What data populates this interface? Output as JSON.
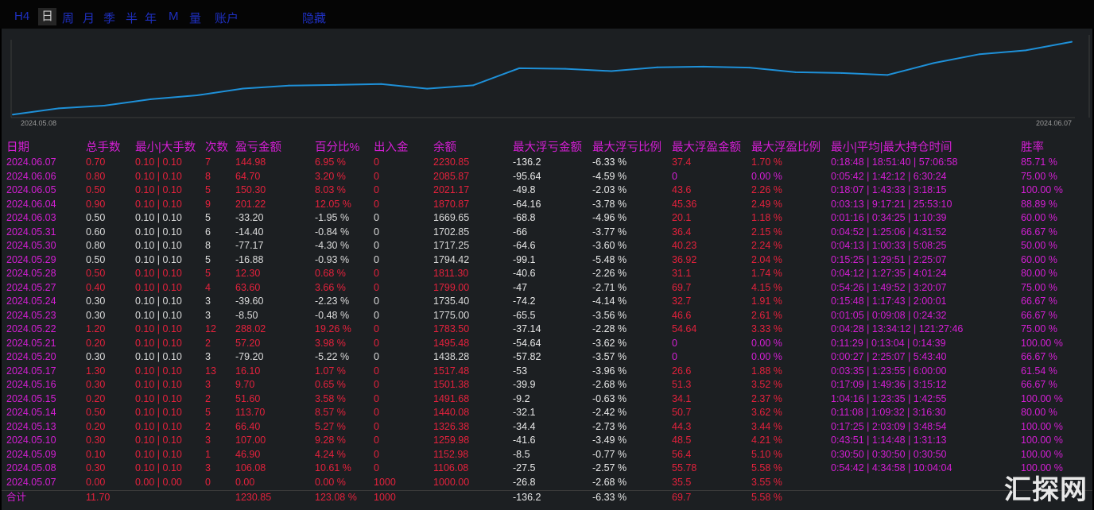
{
  "tabs": [
    {
      "label": "H4"
    },
    {
      "label": "日"
    },
    {
      "label": "周"
    },
    {
      "label": "月"
    },
    {
      "label": "季"
    },
    {
      "label": "半"
    },
    {
      "label": "年"
    },
    {
      "label": "M"
    },
    {
      "label": "量"
    },
    {
      "label": "账户"
    },
    {
      "label": "隐藏"
    }
  ],
  "active_tab": 1,
  "chart_data": {
    "type": "line",
    "x_labels": [
      "2024.05.08",
      "2024.06.07"
    ],
    "x": [
      "2024.05.07",
      "2024.05.08",
      "2024.05.09",
      "2024.05.10",
      "2024.05.13",
      "2024.05.14",
      "2024.05.15",
      "2024.05.16",
      "2024.05.17",
      "2024.05.20",
      "2024.05.21",
      "2024.05.22",
      "2024.05.23",
      "2024.05.24",
      "2024.05.27",
      "2024.05.28",
      "2024.05.29",
      "2024.05.30",
      "2024.05.31",
      "2024.06.03",
      "2024.06.04",
      "2024.06.05",
      "2024.06.06",
      "2024.06.07"
    ],
    "values": [
      1000.0,
      1106.08,
      1152.98,
      1259.98,
      1326.38,
      1440.08,
      1491.68,
      1501.38,
      1517.48,
      1438.28,
      1495.48,
      1783.5,
      1775.0,
      1735.4,
      1799.0,
      1811.3,
      1794.42,
      1717.25,
      1702.85,
      1669.65,
      1870.87,
      2021.17,
      2085.87,
      2230.85
    ],
    "ylim": [
      950,
      2320
    ],
    "color": "#1e90d8",
    "grid": false
  },
  "table": {
    "headers": [
      "日期",
      "总手数",
      "最小|大手数",
      "次数",
      "盈亏金额",
      "百分比%",
      "出入金",
      "余额",
      "最大浮亏金额",
      "最大浮亏比例",
      "最大浮盈金额",
      "最大浮盈比例",
      "最小|平均|最大持仓时间",
      "胜率"
    ],
    "rows": [
      {
        "date": "2024.06.07",
        "lots": "0.70",
        "minmax": "0.10 | 0.10",
        "count": "7",
        "pnl": "144.98",
        "pct": "6.95 %",
        "io": "0",
        "bal": "2230.85",
        "mfl": "-136.2",
        "mflp": "-6.33 %",
        "mfp": "37.4",
        "mfpp": "1.70 %",
        "hold": "0:18:48 | 18:51:40 | 57:06:58",
        "win": "85.71 %",
        "sign": "pos"
      },
      {
        "date": "2024.06.06",
        "lots": "0.80",
        "minmax": "0.10 | 0.10",
        "count": "8",
        "pnl": "64.70",
        "pct": "3.20 %",
        "io": "0",
        "bal": "2085.87",
        "mfl": "-95.64",
        "mflp": "-4.59 %",
        "mfp": "0",
        "mfpp": "0.00 %",
        "hold": "0:05:42 | 1:42:12 | 6:30:24",
        "win": "75.00 %",
        "sign": "pos"
      },
      {
        "date": "2024.06.05",
        "lots": "0.50",
        "minmax": "0.10 | 0.10",
        "count": "5",
        "pnl": "150.30",
        "pct": "8.03 %",
        "io": "0",
        "bal": "2021.17",
        "mfl": "-49.8",
        "mflp": "-2.03 %",
        "mfp": "43.6",
        "mfpp": "2.26 %",
        "hold": "0:18:07 | 1:43:33 | 3:18:15",
        "win": "100.00 %",
        "sign": "pos"
      },
      {
        "date": "2024.06.04",
        "lots": "0.90",
        "minmax": "0.10 | 0.10",
        "count": "9",
        "pnl": "201.22",
        "pct": "12.05 %",
        "io": "0",
        "bal": "1870.87",
        "mfl": "-64.16",
        "mflp": "-3.78 %",
        "mfp": "45.36",
        "mfpp": "2.49 %",
        "hold": "0:03:13 | 9:17:21 | 25:53:10",
        "win": "88.89 %",
        "sign": "pos"
      },
      {
        "date": "2024.06.03",
        "lots": "0.50",
        "minmax": "0.10 | 0.10",
        "count": "5",
        "pnl": "-33.20",
        "pct": "-1.95 %",
        "io": "0",
        "bal": "1669.65",
        "mfl": "-68.8",
        "mflp": "-4.96 %",
        "mfp": "20.1",
        "mfpp": "1.18 %",
        "hold": "0:01:16 | 0:34:25 | 1:10:39",
        "win": "60.00 %",
        "sign": "neg"
      },
      {
        "date": "2024.05.31",
        "lots": "0.60",
        "minmax": "0.10 | 0.10",
        "count": "6",
        "pnl": "-14.40",
        "pct": "-0.84 %",
        "io": "0",
        "bal": "1702.85",
        "mfl": "-66",
        "mflp": "-3.77 %",
        "mfp": "36.4",
        "mfpp": "2.15 %",
        "hold": "0:04:52 | 1:25:06 | 4:31:52",
        "win": "66.67 %",
        "sign": "neg"
      },
      {
        "date": "2024.05.30",
        "lots": "0.80",
        "minmax": "0.10 | 0.10",
        "count": "8",
        "pnl": "-77.17",
        "pct": "-4.30 %",
        "io": "0",
        "bal": "1717.25",
        "mfl": "-64.6",
        "mflp": "-3.60 %",
        "mfp": "40.23",
        "mfpp": "2.24 %",
        "hold": "0:04:13 | 1:00:33 | 5:08:25",
        "win": "50.00 %",
        "sign": "neg"
      },
      {
        "date": "2024.05.29",
        "lots": "0.50",
        "minmax": "0.10 | 0.10",
        "count": "5",
        "pnl": "-16.88",
        "pct": "-0.93 %",
        "io": "0",
        "bal": "1794.42",
        "mfl": "-99.1",
        "mflp": "-5.48 %",
        "mfp": "36.92",
        "mfpp": "2.04 %",
        "hold": "0:15:25 | 1:29:51 | 2:25:07",
        "win": "60.00 %",
        "sign": "neg"
      },
      {
        "date": "2024.05.28",
        "lots": "0.50",
        "minmax": "0.10 | 0.10",
        "count": "5",
        "pnl": "12.30",
        "pct": "0.68 %",
        "io": "0",
        "bal": "1811.30",
        "mfl": "-40.6",
        "mflp": "-2.26 %",
        "mfp": "31.1",
        "mfpp": "1.74 %",
        "hold": "0:04:12 | 1:27:35 | 4:01:24",
        "win": "80.00 %",
        "sign": "pos"
      },
      {
        "date": "2024.05.27",
        "lots": "0.40",
        "minmax": "0.10 | 0.10",
        "count": "4",
        "pnl": "63.60",
        "pct": "3.66 %",
        "io": "0",
        "bal": "1799.00",
        "mfl": "-47",
        "mflp": "-2.71 %",
        "mfp": "69.7",
        "mfpp": "4.15 %",
        "hold": "0:54:26 | 1:49:52 | 3:20:07",
        "win": "75.00 %",
        "sign": "pos"
      },
      {
        "date": "2024.05.24",
        "lots": "0.30",
        "minmax": "0.10 | 0.10",
        "count": "3",
        "pnl": "-39.60",
        "pct": "-2.23 %",
        "io": "0",
        "bal": "1735.40",
        "mfl": "-74.2",
        "mflp": "-4.14 %",
        "mfp": "32.7",
        "mfpp": "1.91 %",
        "hold": "0:15:48 | 1:17:43 | 2:00:01",
        "win": "66.67 %",
        "sign": "neg"
      },
      {
        "date": "2024.05.23",
        "lots": "0.30",
        "minmax": "0.10 | 0.10",
        "count": "3",
        "pnl": "-8.50",
        "pct": "-0.48 %",
        "io": "0",
        "bal": "1775.00",
        "mfl": "-65.5",
        "mflp": "-3.56 %",
        "mfp": "46.6",
        "mfpp": "2.61 %",
        "hold": "0:01:05 | 0:09:08 | 0:24:32",
        "win": "66.67 %",
        "sign": "neg"
      },
      {
        "date": "2024.05.22",
        "lots": "1.20",
        "minmax": "0.10 | 0.10",
        "count": "12",
        "pnl": "288.02",
        "pct": "19.26 %",
        "io": "0",
        "bal": "1783.50",
        "mfl": "-37.14",
        "mflp": "-2.28 %",
        "mfp": "54.64",
        "mfpp": "3.33 %",
        "hold": "0:04:28 | 13:34:12 | 121:27:46",
        "win": "75.00 %",
        "sign": "pos"
      },
      {
        "date": "2024.05.21",
        "lots": "0.20",
        "minmax": "0.10 | 0.10",
        "count": "2",
        "pnl": "57.20",
        "pct": "3.98 %",
        "io": "0",
        "bal": "1495.48",
        "mfl": "-54.64",
        "mflp": "-3.62 %",
        "mfp": "0",
        "mfpp": "0.00 %",
        "hold": "0:11:29 | 0:13:04 | 0:14:39",
        "win": "100.00 %",
        "sign": "pos"
      },
      {
        "date": "2024.05.20",
        "lots": "0.30",
        "minmax": "0.10 | 0.10",
        "count": "3",
        "pnl": "-79.20",
        "pct": "-5.22 %",
        "io": "0",
        "bal": "1438.28",
        "mfl": "-57.82",
        "mflp": "-3.57 %",
        "mfp": "0",
        "mfpp": "0.00 %",
        "hold": "0:00:27 | 2:25:07 | 5:43:40",
        "win": "66.67 %",
        "sign": "neg"
      },
      {
        "date": "2024.05.17",
        "lots": "1.30",
        "minmax": "0.10 | 0.10",
        "count": "13",
        "pnl": "16.10",
        "pct": "1.07 %",
        "io": "0",
        "bal": "1517.48",
        "mfl": "-53",
        "mflp": "-3.96 %",
        "mfp": "26.6",
        "mfpp": "1.88 %",
        "hold": "0:03:35 | 1:23:55 | 6:00:00",
        "win": "61.54 %",
        "sign": "pos"
      },
      {
        "date": "2024.05.16",
        "lots": "0.30",
        "minmax": "0.10 | 0.10",
        "count": "3",
        "pnl": "9.70",
        "pct": "0.65 %",
        "io": "0",
        "bal": "1501.38",
        "mfl": "-39.9",
        "mflp": "-2.68 %",
        "mfp": "51.3",
        "mfpp": "3.52 %",
        "hold": "0:17:09 | 1:49:36 | 3:15:12",
        "win": "66.67 %",
        "sign": "pos"
      },
      {
        "date": "2024.05.15",
        "lots": "0.20",
        "minmax": "0.10 | 0.10",
        "count": "2",
        "pnl": "51.60",
        "pct": "3.58 %",
        "io": "0",
        "bal": "1491.68",
        "mfl": "-9.2",
        "mflp": "-0.63 %",
        "mfp": "34.1",
        "mfpp": "2.37 %",
        "hold": "1:04:16 | 1:23:35 | 1:42:55",
        "win": "100.00 %",
        "sign": "pos"
      },
      {
        "date": "2024.05.14",
        "lots": "0.50",
        "minmax": "0.10 | 0.10",
        "count": "5",
        "pnl": "113.70",
        "pct": "8.57 %",
        "io": "0",
        "bal": "1440.08",
        "mfl": "-32.1",
        "mflp": "-2.42 %",
        "mfp": "50.7",
        "mfpp": "3.62 %",
        "hold": "0:11:08 | 1:09:32 | 3:16:30",
        "win": "80.00 %",
        "sign": "pos"
      },
      {
        "date": "2024.05.13",
        "lots": "0.20",
        "minmax": "0.10 | 0.10",
        "count": "2",
        "pnl": "66.40",
        "pct": "5.27 %",
        "io": "0",
        "bal": "1326.38",
        "mfl": "-34.4",
        "mflp": "-2.73 %",
        "mfp": "44.3",
        "mfpp": "3.44 %",
        "hold": "0:17:25 | 2:03:09 | 3:48:54",
        "win": "100.00 %",
        "sign": "pos"
      },
      {
        "date": "2024.05.10",
        "lots": "0.30",
        "minmax": "0.10 | 0.10",
        "count": "3",
        "pnl": "107.00",
        "pct": "9.28 %",
        "io": "0",
        "bal": "1259.98",
        "mfl": "-41.6",
        "mflp": "-3.49 %",
        "mfp": "48.5",
        "mfpp": "4.21 %",
        "hold": "0:43:51 | 1:14:48 | 1:31:13",
        "win": "100.00 %",
        "sign": "pos"
      },
      {
        "date": "2024.05.09",
        "lots": "0.10",
        "minmax": "0.10 | 0.10",
        "count": "1",
        "pnl": "46.90",
        "pct": "4.24 %",
        "io": "0",
        "bal": "1152.98",
        "mfl": "-8.5",
        "mflp": "-0.77 %",
        "mfp": "56.4",
        "mfpp": "5.10 %",
        "hold": "0:30:50 | 0:30:50 | 0:30:50",
        "win": "100.00 %",
        "sign": "pos"
      },
      {
        "date": "2024.05.08",
        "lots": "0.30",
        "minmax": "0.10 | 0.10",
        "count": "3",
        "pnl": "106.08",
        "pct": "10.61 %",
        "io": "0",
        "bal": "1106.08",
        "mfl": "-27.5",
        "mflp": "-2.57 %",
        "mfp": "55.78",
        "mfpp": "5.58 %",
        "hold": "0:54:42 | 4:34:58 | 10:04:04",
        "win": "100.00 %",
        "sign": "pos"
      },
      {
        "date": "2024.05.07",
        "lots": "0.00",
        "minmax": "0.00 | 0.00",
        "count": "0",
        "pnl": "0.00",
        "pct": "0.00 %",
        "io": "1000",
        "bal": "1000.00",
        "mfl": "-26.8",
        "mflp": "-2.68 %",
        "mfp": "35.5",
        "mfpp": "3.55 %",
        "hold": "",
        "win": "",
        "sign": "zero"
      }
    ],
    "total": {
      "date": "合计",
      "lots": "11.70",
      "minmax": "",
      "count": "",
      "pnl": "1230.85",
      "pct": "123.08 %",
      "io": "1000",
      "bal": "",
      "mfl": "-136.2",
      "mflp": "-6.33 %",
      "mfp": "69.7",
      "mfpp": "5.58 %",
      "hold": "",
      "win": ""
    }
  },
  "colors": {
    "positive": "#e4213c",
    "negative": "#dcdcdc",
    "header": "#d41fd4",
    "float_loss": "#e9e9e9",
    "win": "#d41fd4",
    "line": "#1e90d8"
  },
  "watermark": "汇探网"
}
